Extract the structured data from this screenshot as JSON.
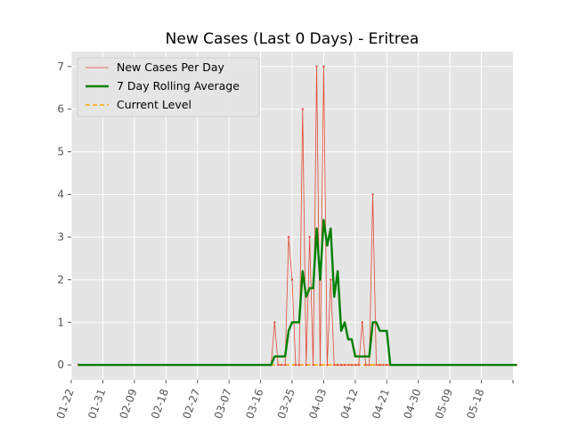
{
  "chart_data": {
    "type": "line",
    "title": "New Cases (Last 0 Days) - Eritrea",
    "xlabel": "",
    "ylabel": "",
    "ylim": [
      -0.35,
      7.35
    ],
    "yticks": [
      0,
      1,
      2,
      3,
      4,
      5,
      6,
      7
    ],
    "xlim": [
      "2020-01-22",
      "2020-05-27"
    ],
    "xticks": [
      "01-22",
      "01-31",
      "02-09",
      "02-18",
      "02-27",
      "03-07",
      "03-16",
      "03-25",
      "04-03",
      "04-12",
      "04-21",
      "04-30",
      "05-09",
      "05-18"
    ],
    "grid": true,
    "legend_position": "top-left",
    "x_start": "2020-01-24",
    "series": [
      {
        "name": "New Cases Per Day",
        "color": "#e24a33",
        "style": "thin-line-with-markers",
        "values": [
          0,
          0,
          0,
          0,
          0,
          0,
          0,
          0,
          0,
          0,
          0,
          0,
          0,
          0,
          0,
          0,
          0,
          0,
          0,
          0,
          0,
          0,
          0,
          0,
          0,
          0,
          0,
          0,
          0,
          0,
          0,
          0,
          0,
          0,
          0,
          0,
          0,
          0,
          0,
          0,
          0,
          0,
          0,
          0,
          0,
          0,
          0,
          0,
          0,
          0,
          0,
          0,
          0,
          0,
          0,
          0,
          1,
          0,
          0,
          0,
          3,
          2,
          0,
          0,
          6,
          0,
          3,
          0,
          7,
          0,
          7,
          0,
          2,
          0,
          0,
          0,
          0,
          0,
          0,
          0,
          0,
          1,
          0,
          0,
          4,
          0,
          0,
          0,
          0,
          0,
          0,
          0,
          0,
          0,
          0,
          0,
          0,
          0,
          0,
          0,
          0,
          0,
          0,
          0,
          0,
          0,
          0,
          0,
          0,
          0,
          0,
          0,
          0,
          0,
          0,
          0,
          0,
          0,
          0,
          0,
          0,
          0,
          0,
          0,
          0,
          0
        ]
      },
      {
        "name": "7 Day Rolling Average",
        "color": "#008000",
        "style": "thick-line",
        "values": [
          0,
          0,
          0,
          0,
          0,
          0,
          0,
          0,
          0,
          0,
          0,
          0,
          0,
          0,
          0,
          0,
          0,
          0,
          0,
          0,
          0,
          0,
          0,
          0,
          0,
          0,
          0,
          0,
          0,
          0,
          0,
          0,
          0,
          0,
          0,
          0,
          0,
          0,
          0,
          0,
          0,
          0,
          0,
          0,
          0,
          0,
          0,
          0,
          0,
          0,
          0,
          0,
          0,
          0,
          0,
          0,
          0.2,
          0.2,
          0.2,
          0.2,
          0.8,
          1,
          1,
          1,
          2.2,
          1.6,
          1.8,
          1.8,
          3.2,
          2,
          3.4,
          2.8,
          3.2,
          1.6,
          2.2,
          0.8,
          1,
          0.6,
          0.6,
          0.2,
          0.2,
          0.2,
          0.2,
          0.2,
          1,
          1,
          0.8,
          0.8,
          0.8,
          0,
          0,
          0,
          0,
          0,
          0,
          0,
          0,
          0,
          0,
          0,
          0,
          0,
          0,
          0,
          0,
          0,
          0,
          0,
          0,
          0,
          0,
          0,
          0,
          0,
          0,
          0,
          0,
          0,
          0,
          0,
          0,
          0,
          0,
          0,
          0,
          0
        ]
      },
      {
        "name": "Current Level",
        "color": "#ffa500",
        "style": "dashed",
        "value": 0
      }
    ]
  }
}
